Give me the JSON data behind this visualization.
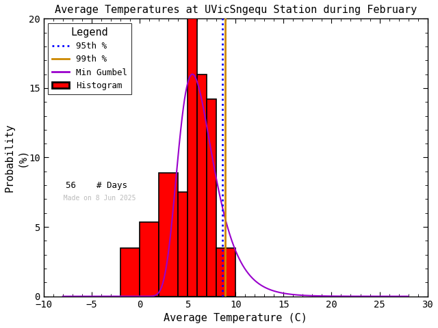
{
  "title": "Average Temperatures at UVicSngequ Station during February",
  "xlabel": "Average Temperature (C)",
  "ylabel": "Probability\n(%)",
  "xlim": [
    -10,
    30
  ],
  "ylim": [
    0,
    20
  ],
  "xticks": [
    -10,
    -5,
    0,
    5,
    10,
    15,
    20,
    25,
    30
  ],
  "yticks": [
    0,
    5,
    10,
    15,
    20
  ],
  "bar_edges": [
    -2,
    0,
    2,
    4,
    5,
    6,
    7,
    8,
    10
  ],
  "bar_heights": [
    3.5,
    5.35,
    8.9,
    7.5,
    20.0,
    16.0,
    14.2,
    3.5
  ],
  "bar_color": "#ff0000",
  "bar_edgecolor": "#000000",
  "gumbel_color": "#9900cc",
  "pct95_color": "#0000ff",
  "pct99_color": "#cc8800",
  "watermark": "Made on 8 Jun 2025",
  "watermark_color": "#bbbbbb",
  "n_days": 56,
  "legend_title": "Legend",
  "legend_labels": [
    "95th %",
    "99th %",
    "Min Gumbel",
    "Histogram",
    "# Days"
  ],
  "gumbel_mu": 5.5,
  "gumbel_beta": 1.8,
  "pct95_x": 8.6,
  "pct99_x": 8.9
}
